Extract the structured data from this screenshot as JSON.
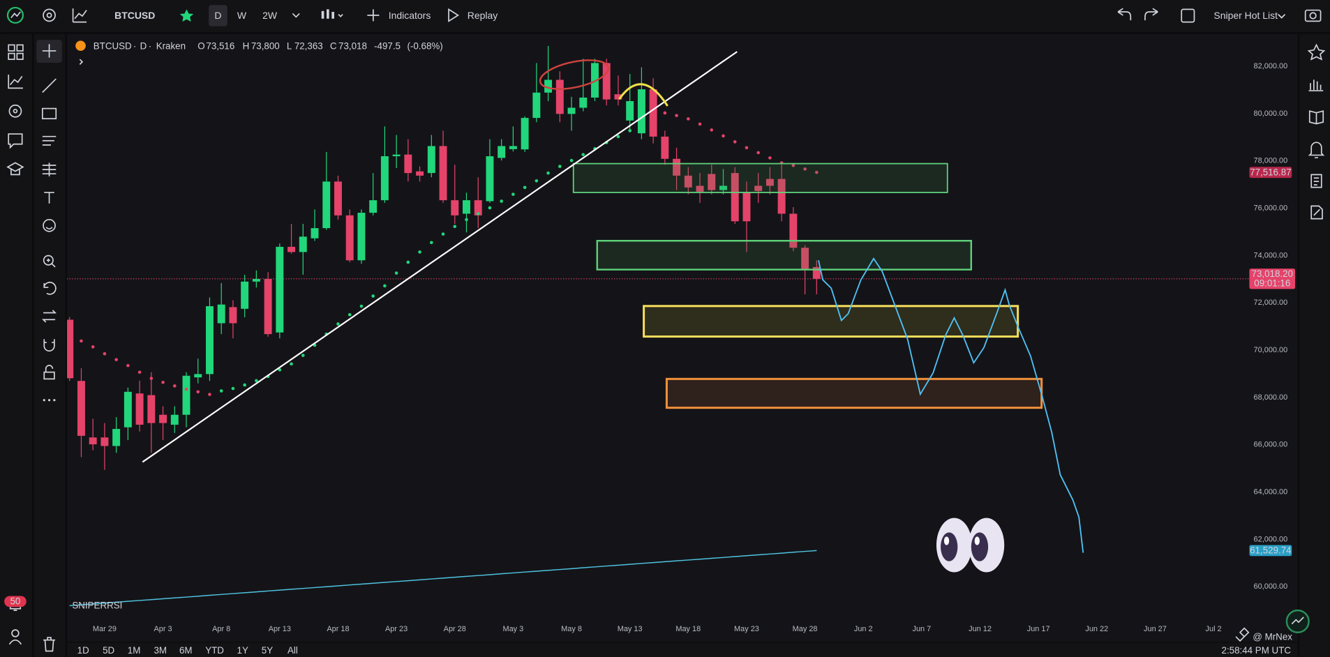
{
  "toolbar": {
    "symbol": "BTCUSD",
    "intervals": [
      "D",
      "W",
      "2W"
    ],
    "indicators": "Indicators",
    "replay": "Replay",
    "watchlist": "Sniper Hot List"
  },
  "chart_data": {
    "type": "candlestick",
    "legend": {
      "symbol": "BTCUSD",
      "interval": "D",
      "exchange": "Kraken",
      "open_label": "O",
      "open": "73,516",
      "high_label": "H",
      "high": "73,800",
      "low_label": "L",
      "low": "72,363",
      "close_label": "C",
      "close": "73,018",
      "change": "-497.5",
      "change_pct": "(-0.68%)"
    },
    "x": [
      "Mar 26",
      "Mar 27",
      "Mar 28",
      "Mar 29",
      "Mar 30",
      "Mar 31",
      "Apr 1",
      "Apr 2",
      "Apr 3",
      "Apr 4",
      "Apr 5",
      "Apr 6",
      "Apr 7",
      "Apr 8",
      "Apr 9",
      "Apr 10",
      "Apr 11",
      "Apr 12",
      "Apr 13",
      "Apr 14",
      "Apr 15",
      "Apr 16",
      "Apr 17",
      "Apr 18",
      "Apr 19",
      "Apr 20",
      "Apr 21",
      "Apr 22",
      "Apr 23",
      "Apr 24",
      "Apr 25",
      "Apr 26",
      "Apr 27",
      "Apr 28",
      "Apr 29",
      "Apr 30",
      "May 1",
      "May 2",
      "May 3",
      "May 4",
      "May 5",
      "May 6",
      "May 7",
      "May 8",
      "May 9",
      "May 10",
      "May 11",
      "May 12",
      "May 13",
      "May 14",
      "May 15",
      "May 16",
      "May 17",
      "May 18",
      "May 19",
      "May 20",
      "May 21",
      "May 22",
      "May 23",
      "May 24",
      "May 25",
      "May 26",
      "May 27",
      "May 28",
      "May 29"
    ],
    "open": [
      71287,
      68700,
      66310,
      66310,
      65950,
      66740,
      68170,
      68100,
      67270,
      66850,
      67270,
      68850,
      68990,
      71140,
      71820,
      71750,
      72900,
      73010,
      70750,
      74370,
      74150,
      74730,
      75160,
      77130,
      75700,
      73800,
      75810,
      76340,
      78200,
      78270,
      77560,
      77490,
      78630,
      76340,
      75770,
      76340,
      76300,
      78130,
      78500,
      78490,
      79820,
      80890,
      81430,
      79990,
      80250,
      80680,
      82140,
      80820,
      79710,
      79170,
      81030,
      79030,
      78090,
      77380,
      76950,
      77450,
      76770,
      77490,
      76660,
      76950,
      77240,
      77240,
      75770,
      74330,
      73516
    ],
    "high": [
      71400,
      69240,
      67100,
      66920,
      67170,
      68420,
      68710,
      69070,
      67630,
      67630,
      69070,
      69640,
      72230,
      72840,
      72110,
      73190,
      73370,
      73300,
      74510,
      75340,
      75340,
      75950,
      78380,
      77380,
      75950,
      75950,
      77490,
      79460,
      79100,
      78920,
      77770,
      79100,
      79280,
      77840,
      76660,
      77310,
      78920,
      78920,
      79460,
      79890,
      82140,
      82860,
      81790,
      80710,
      82320,
      82320,
      82320,
      81610,
      81680,
      81960,
      81500,
      79280,
      78560,
      77740,
      77490,
      77840,
      77660,
      77740,
      77130,
      77490,
      77740,
      77840,
      76050,
      74440,
      73800
    ],
    "low": [
      68700,
      65480,
      65770,
      64940,
      65660,
      66200,
      66560,
      65660,
      66200,
      66500,
      66740,
      68600,
      68700,
      70680,
      70500,
      71390,
      72650,
      70570,
      70500,
      74080,
      73190,
      74620,
      75090,
      75520,
      73720,
      73650,
      75700,
      76230,
      77700,
      77130,
      77130,
      77310,
      76230,
      75340,
      74980,
      75160,
      76230,
      78020,
      78400,
      78380,
      79640,
      80530,
      79640,
      79280,
      80100,
      80530,
      80350,
      80350,
      79280,
      78920,
      78740,
      77840,
      76770,
      76590,
      76230,
      76590,
      76590,
      75340,
      74150,
      76230,
      76590,
      75450,
      74190,
      72360,
      72363
    ],
    "close": [
      68814,
      66380,
      66020,
      65950,
      66670,
      68240,
      66850,
      66920,
      66920,
      67270,
      68920,
      68990,
      71860,
      71930,
      71140,
      72900,
      73010,
      70680,
      74370,
      74150,
      74800,
      75160,
      77130,
      75700,
      73800,
      75810,
      76340,
      78200,
      78270,
      77490,
      77380,
      78630,
      76340,
      75700,
      76340,
      75700,
      78200,
      78630,
      78630,
      79820,
      80890,
      81430,
      79990,
      80250,
      80680,
      82140,
      80600,
      80600,
      80530,
      81030,
      79030,
      78090,
      77380,
      76880,
      76700,
      76770,
      76950,
      75450,
      75450,
      76730,
      76950,
      75770,
      74330,
      73440,
      73018.2
    ],
    "up_color": "#22d67b",
    "down_color": "#e5436a",
    "sar": [
      {
        "color": "#e5436a",
        "start": "Mar 26",
        "values": [
          70570,
          70390,
          70140,
          69850,
          69600,
          69350,
          69070,
          68810,
          68640,
          68490,
          68350,
          68240,
          68130
        ]
      },
      {
        "color": "#22d67b",
        "start": "Apr 8",
        "values": [
          68280,
          68380,
          68530,
          68710,
          68890,
          69170,
          69420,
          69780,
          70210,
          70680,
          71110,
          71500,
          71860,
          72290,
          72720,
          73260,
          73720,
          74150,
          74550,
          74910,
          75230,
          75520,
          75770,
          76020,
          76300,
          76590,
          76880,
          77160,
          77490,
          77770,
          78020,
          78270,
          78520,
          78780,
          79030,
          79280,
          79640
        ]
      },
      {
        "color": "#e5436a",
        "start": "May 15",
        "values": [
          80070,
          80030,
          79920,
          79780,
          79560,
          79310,
          79060,
          78810,
          78560,
          78350,
          78130,
          77920,
          77810,
          77660,
          77516.87
        ],
        "value_label": "77,516.87",
        "label_color": "#b8284c"
      }
    ],
    "ma": {
      "color": "#4fc3e0",
      "label_color": "#2a9fc6",
      "value_label": "61,529.74",
      "values": [
        59200,
        59236,
        59273,
        59309,
        59346,
        59382,
        59418,
        59455,
        59491,
        59528,
        59564,
        59600,
        59637,
        59673,
        59710,
        59746,
        59782,
        59819,
        59855,
        59892,
        59928,
        59964,
        60001,
        60037,
        60074,
        60110,
        60146,
        60183,
        60219,
        60256,
        60292,
        60328,
        60365,
        60401,
        60438,
        60474,
        60510,
        60547,
        60583,
        60620,
        60656,
        60692,
        60729,
        60765,
        60802,
        60838,
        60874,
        60911,
        60947,
        60984,
        61020,
        61056,
        61093,
        61129,
        61166,
        61202,
        61238,
        61275,
        61311,
        61348,
        61384,
        61420,
        61457,
        61493,
        61529.74
      ]
    },
    "price_line": {
      "value": 73018.2,
      "label": "73,018.20",
      "countdown": "09:01:16",
      "color": "#e5436a"
    },
    "indicator_label": "SNIPERRSI",
    "xlim": [
      "Mar 26",
      "Jul 5"
    ],
    "xticks": [
      "Mar 29",
      "Apr 3",
      "Apr 8",
      "Apr 13",
      "Apr 18",
      "Apr 23",
      "Apr 28",
      "May 3",
      "May 8",
      "May 13",
      "May 18",
      "May 23",
      "May 28",
      "Jun 2",
      "Jun 7",
      "Jun 12",
      "Jun 17",
      "Jun 22",
      "Jun 27",
      "Jul 2"
    ],
    "ylim": [
      59000,
      83300
    ],
    "yticks": [
      {
        "value": 60000,
        "label": "60,000.00"
      },
      {
        "value": 62000,
        "label": "62,000.00"
      },
      {
        "value": 64000,
        "label": "64,000.00"
      },
      {
        "value": 66000,
        "label": "66,000.00"
      },
      {
        "value": 68000,
        "label": "68,000.00"
      },
      {
        "value": 70000,
        "label": "70,000.00"
      },
      {
        "value": 72000,
        "label": "72,000.00"
      },
      {
        "value": 74000,
        "label": "74,000.00"
      },
      {
        "value": 76000,
        "label": "76,000.00"
      },
      {
        "value": 78000,
        "label": "78,000.00"
      },
      {
        "value": 80000,
        "label": "80,000.00"
      },
      {
        "value": 82000,
        "label": "82,000.00"
      }
    ]
  },
  "bottom_bar": {
    "ranges": [
      "1D",
      "5D",
      "1M",
      "3M",
      "6M",
      "YTD",
      "1Y",
      "5Y",
      "All"
    ],
    "time": "2:58:44 PM UTC"
  },
  "watermark": "@ MrNex",
  "alerts_badge": "50"
}
